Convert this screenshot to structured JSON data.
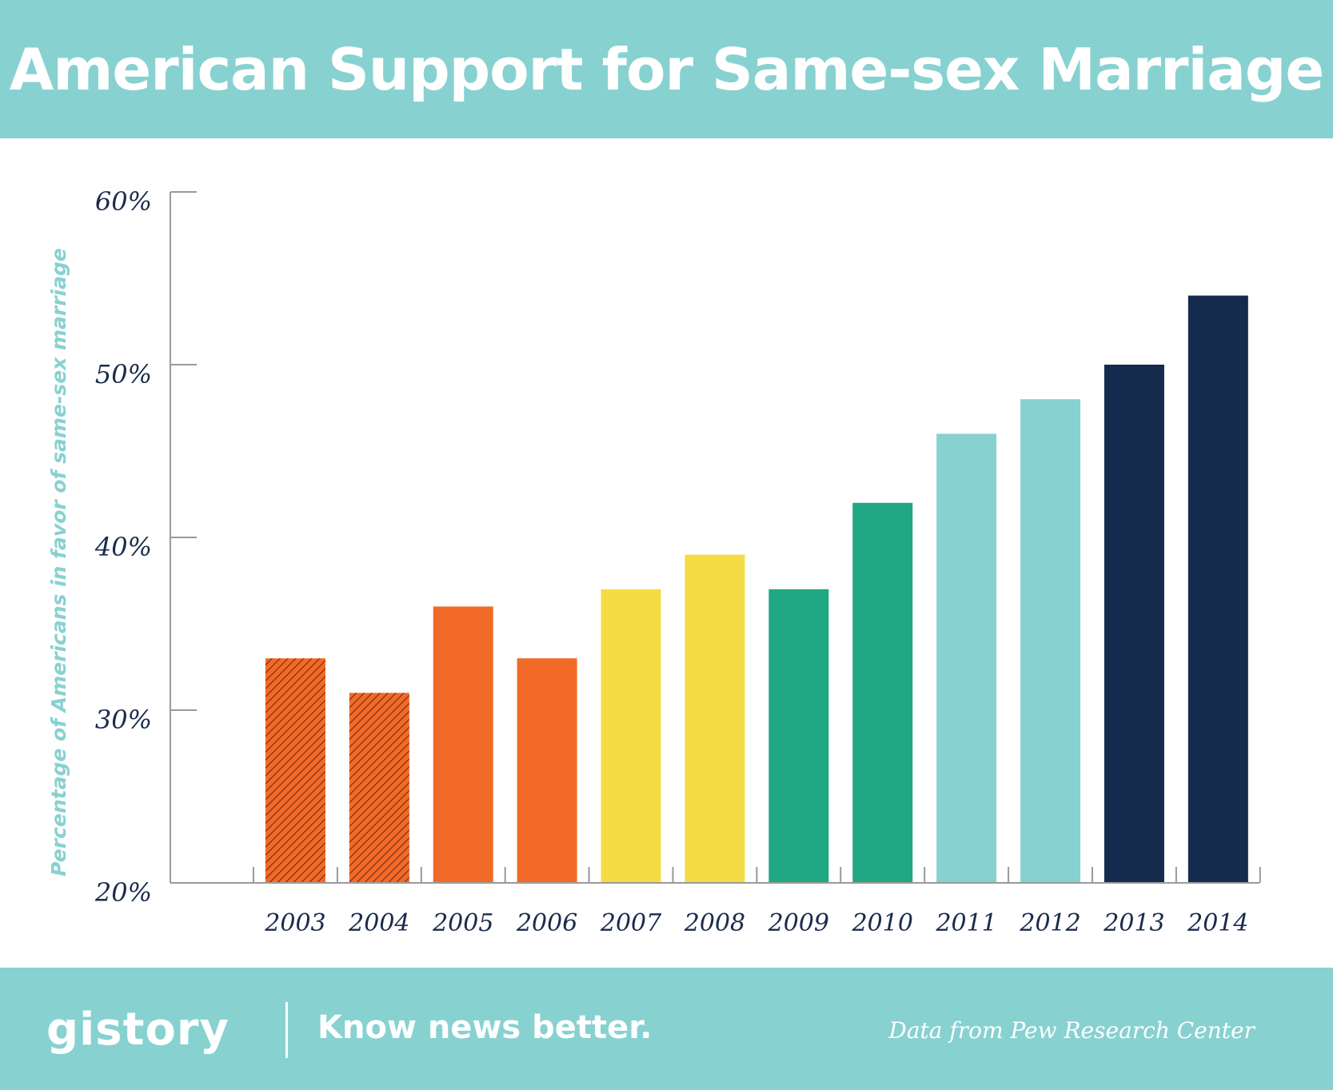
{
  "header": {
    "title": "American Support for Same-sex Marriage"
  },
  "footer": {
    "logo": "gistory",
    "tagline": "Know news better.",
    "source": "Data from Pew Research Center"
  },
  "colors": {
    "header_bg": "#88d1d1",
    "axis": "#9a9a9a",
    "text_dark": "#1a2b4c"
  },
  "chart_data": {
    "type": "bar",
    "title": "American Support for Same-sex Marriage",
    "xlabel": "",
    "ylabel": "Percentage of Americans in favor of same-sex marriage",
    "ylim": [
      20,
      60
    ],
    "yticks": [
      20,
      30,
      40,
      50,
      60
    ],
    "ytick_labels": [
      "20%",
      "30%",
      "40%",
      "50%",
      "60%"
    ],
    "grid": false,
    "categories": [
      "2003",
      "2004",
      "2005",
      "2006",
      "2007",
      "2008",
      "2009",
      "2010",
      "2011",
      "2012",
      "2013",
      "2014"
    ],
    "values": [
      33,
      31,
      36,
      33,
      37,
      39,
      37,
      42,
      46,
      48,
      50,
      54
    ],
    "bar_colors": [
      "#f26a27",
      "#f26a27",
      "#f26a27",
      "#f26a27",
      "#f6dc43",
      "#f6dc43",
      "#20a783",
      "#20a783",
      "#88d1d1",
      "#88d1d1",
      "#152b4e",
      "#152b4e"
    ],
    "hatched": [
      true,
      true,
      false,
      false,
      false,
      false,
      false,
      false,
      false,
      false,
      false,
      false
    ]
  }
}
